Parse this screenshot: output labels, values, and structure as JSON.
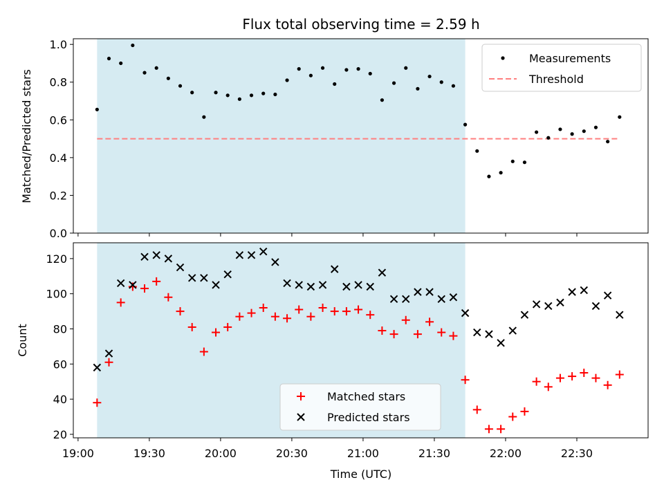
{
  "title": "Flux total observing time = 2.59 h",
  "colors": {
    "shade": "#add8e6",
    "measurement": "#000000",
    "threshold": "#ff7f7f",
    "matched": "#ff0000",
    "predicted": "#000000"
  },
  "chart_data": [
    {
      "type": "scatter",
      "ylabel": "Matched/Predicted stars",
      "xlabel": "",
      "xlim": [
        "18:58",
        "23:00"
      ],
      "ylim": [
        0,
        1.03
      ],
      "yticks": [
        "0.0",
        "0.2",
        "0.4",
        "0.6",
        "0.8",
        "1.0"
      ],
      "ytick_values": [
        0,
        0.2,
        0.4,
        0.6,
        0.8,
        1.0
      ],
      "shaded_span": [
        "19:08",
        "21:43"
      ],
      "legend": {
        "placement": "upper right",
        "entries": [
          "Measurements",
          "Threshold"
        ]
      },
      "threshold": {
        "name": "Threshold",
        "value": 0.5,
        "x_range": [
          "19:08",
          "22:48"
        ]
      },
      "series": [
        {
          "name": "Measurements",
          "x": [
            "19:08",
            "19:13",
            "19:18",
            "19:23",
            "19:28",
            "19:33",
            "19:38",
            "19:43",
            "19:48",
            "19:53",
            "19:58",
            "20:03",
            "20:08",
            "20:13",
            "20:18",
            "20:23",
            "20:28",
            "20:33",
            "20:38",
            "20:43",
            "20:48",
            "20:53",
            "20:58",
            "21:03",
            "21:08",
            "21:13",
            "21:18",
            "21:23",
            "21:28",
            "21:33",
            "21:38",
            "21:43",
            "21:48",
            "21:53",
            "21:58",
            "22:03",
            "22:08",
            "22:13",
            "22:18",
            "22:23",
            "22:28",
            "22:33",
            "22:38",
            "22:43",
            "22:48"
          ],
          "y": [
            0.655,
            0.925,
            0.9,
            0.995,
            0.85,
            0.875,
            0.82,
            0.78,
            0.745,
            0.615,
            0.745,
            0.73,
            0.71,
            0.73,
            0.74,
            0.735,
            0.81,
            0.87,
            0.835,
            0.875,
            0.79,
            0.865,
            0.87,
            0.845,
            0.705,
            0.795,
            0.875,
            0.765,
            0.83,
            0.8,
            0.78,
            0.575,
            0.435,
            0.3,
            0.32,
            0.38,
            0.375,
            0.535,
            0.505,
            0.55,
            0.525,
            0.54,
            0.56,
            0.485,
            0.615
          ]
        }
      ]
    },
    {
      "type": "scatter",
      "ylabel": "Count",
      "xlabel": "Time (UTC)",
      "xlim": [
        "18:58",
        "23:00"
      ],
      "ylim": [
        18,
        129
      ],
      "yticks": [
        "20",
        "40",
        "60",
        "80",
        "100",
        "120"
      ],
      "ytick_values": [
        20,
        40,
        60,
        80,
        100,
        120
      ],
      "xticks": [
        "19:00",
        "19:30",
        "20:00",
        "20:30",
        "21:00",
        "21:30",
        "22:00",
        "22:30"
      ],
      "shaded_span": [
        "19:08",
        "21:43"
      ],
      "legend": {
        "placement": "lower center",
        "entries": [
          "Matched stars",
          "Predicted stars"
        ]
      },
      "series": [
        {
          "name": "Matched stars",
          "x": [
            "19:08",
            "19:13",
            "19:18",
            "19:23",
            "19:28",
            "19:33",
            "19:38",
            "19:43",
            "19:48",
            "19:53",
            "19:58",
            "20:03",
            "20:08",
            "20:13",
            "20:18",
            "20:23",
            "20:28",
            "20:33",
            "20:38",
            "20:43",
            "20:48",
            "20:53",
            "20:58",
            "21:03",
            "21:08",
            "21:13",
            "21:18",
            "21:23",
            "21:28",
            "21:33",
            "21:38",
            "21:43",
            "21:48",
            "21:53",
            "21:58",
            "22:03",
            "22:08",
            "22:13",
            "22:18",
            "22:23",
            "22:28",
            "22:33",
            "22:38",
            "22:43",
            "22:48"
          ],
          "y": [
            38,
            61,
            95,
            104,
            103,
            107,
            98,
            90,
            81,
            67,
            78,
            81,
            87,
            89,
            92,
            87,
            86,
            91,
            87,
            92,
            90,
            90,
            91,
            88,
            79,
            77,
            85,
            77,
            84,
            78,
            76,
            51,
            34,
            23,
            23,
            30,
            33,
            50,
            47,
            52,
            53,
            55,
            52,
            48,
            54
          ]
        },
        {
          "name": "Predicted stars",
          "x": [
            "19:08",
            "19:13",
            "19:18",
            "19:23",
            "19:28",
            "19:33",
            "19:38",
            "19:43",
            "19:48",
            "19:53",
            "19:58",
            "20:03",
            "20:08",
            "20:13",
            "20:18",
            "20:23",
            "20:28",
            "20:33",
            "20:38",
            "20:43",
            "20:48",
            "20:53",
            "20:58",
            "21:03",
            "21:08",
            "21:13",
            "21:18",
            "21:23",
            "21:28",
            "21:33",
            "21:38",
            "21:43",
            "21:48",
            "21:53",
            "21:58",
            "22:03",
            "22:08",
            "22:13",
            "22:18",
            "22:23",
            "22:28",
            "22:33",
            "22:38",
            "22:43",
            "22:48"
          ],
          "y": [
            58,
            66,
            106,
            105,
            121,
            122,
            120,
            115,
            109,
            109,
            105,
            111,
            122,
            122,
            124,
            118,
            106,
            105,
            104,
            105,
            114,
            104,
            105,
            104,
            112,
            97,
            97,
            101,
            101,
            97,
            98,
            89,
            78,
            77,
            72,
            79,
            88,
            94,
            93,
            95,
            101,
            102,
            93,
            99,
            88
          ]
        }
      ]
    }
  ]
}
